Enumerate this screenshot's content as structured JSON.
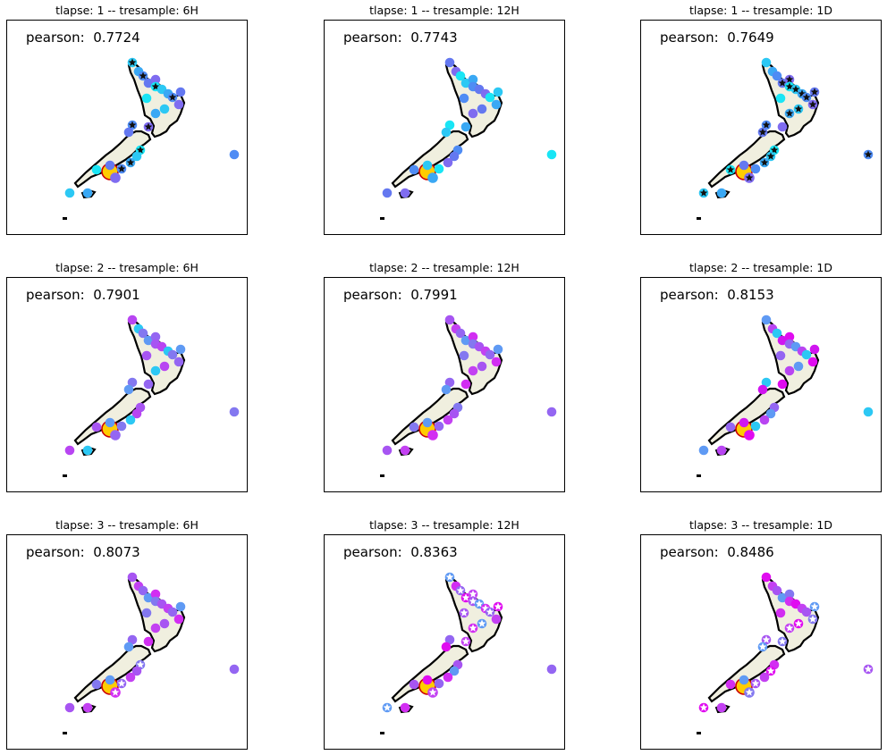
{
  "figure": {
    "panels": [
      {
        "tlapse": "1",
        "tresample": "6H",
        "title": "tlapse: 1 -- tresample: 6H",
        "pearson_label": "pearson:  0.7724",
        "pearson": 0.7724,
        "marker_style": "star-black"
      },
      {
        "tlapse": "1",
        "tresample": "12H",
        "title": "tlapse: 1 -- tresample: 12H",
        "pearson_label": "pearson:  0.7743",
        "pearson": 0.7743,
        "marker_style": "none"
      },
      {
        "tlapse": "1",
        "tresample": "1D",
        "title": "tlapse: 1 -- tresample: 1D",
        "pearson_label": "pearson:  0.7649",
        "pearson": 0.7649,
        "marker_style": "star-black"
      },
      {
        "tlapse": "2",
        "tresample": "6H",
        "title": "tlapse: 2 -- tresample: 6H",
        "pearson_label": "pearson:  0.7901",
        "pearson": 0.7901,
        "marker_style": "none"
      },
      {
        "tlapse": "2",
        "tresample": "12H",
        "title": "tlapse: 2 -- tresample: 12H",
        "pearson_label": "pearson:  0.7991",
        "pearson": 0.7991,
        "marker_style": "none"
      },
      {
        "tlapse": "2",
        "tresample": "1D",
        "title": "tlapse: 2 -- tresample: 1D",
        "pearson_label": "pearson:  0.8153",
        "pearson": 0.8153,
        "marker_style": "none"
      },
      {
        "tlapse": "3",
        "tresample": "6H",
        "title": "tlapse: 3 -- tresample: 6H",
        "pearson_label": "pearson:  0.8073",
        "pearson": 0.8073,
        "marker_style": "star-white"
      },
      {
        "tlapse": "3",
        "tresample": "12H",
        "title": "tlapse: 3 -- tresample: 12H",
        "pearson_label": "pearson:  0.8363",
        "pearson": 0.8363,
        "marker_style": "star-white"
      },
      {
        "tlapse": "3",
        "tresample": "1D",
        "title": "tlapse: 3 -- tresample: 1D",
        "pearson_label": "pearson:  0.8486",
        "pearson": 0.8486,
        "marker_style": "star-white"
      }
    ],
    "colors": {
      "land": "#f0efdf",
      "coast": "#000000",
      "highlight_ring": "#ffcc00",
      "highlight_edge": "#cc0000",
      "star_dark": "#111111",
      "star_light": "#ffffff"
    }
  }
}
